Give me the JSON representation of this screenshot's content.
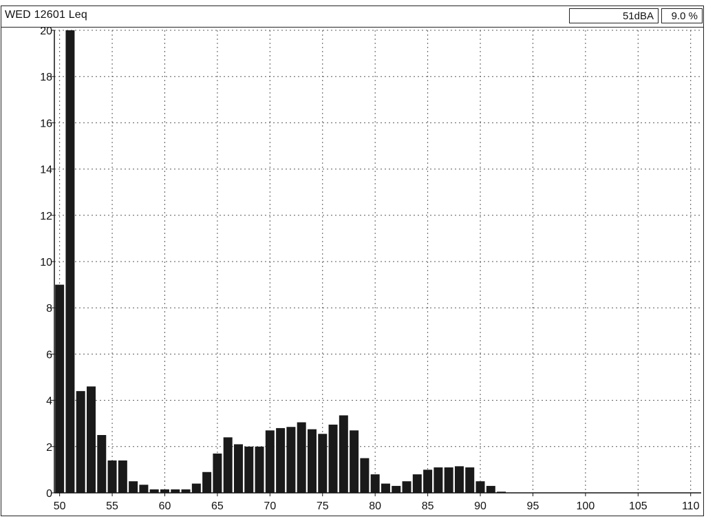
{
  "header": {
    "title": "WED 12601  Leq",
    "level_readout": "51dBA",
    "percent_readout": "9.0 %"
  },
  "colors": {
    "bar": "#1a1a1a",
    "grid": "#555555",
    "axis": "#111111"
  },
  "chart_data": {
    "type": "bar",
    "title": "",
    "xlabel": "",
    "ylabel": "",
    "xlim": [
      49.5,
      111
    ],
    "ylim": [
      0,
      20
    ],
    "x_ticks": [
      50,
      55,
      60,
      65,
      70,
      75,
      80,
      85,
      90,
      95,
      100,
      105,
      110
    ],
    "y_ticks": [
      0,
      2,
      4,
      6,
      8,
      10,
      12,
      14,
      16,
      18,
      20
    ],
    "grid": true,
    "bar_width_units": 0.85,
    "x": [
      50,
      51,
      52,
      53,
      54,
      55,
      56,
      57,
      58,
      59,
      60,
      61,
      62,
      63,
      64,
      65,
      66,
      67,
      68,
      69,
      70,
      71,
      72,
      73,
      74,
      75,
      76,
      77,
      78,
      79,
      80,
      81,
      82,
      83,
      84,
      85,
      86,
      87,
      88,
      89,
      90,
      91,
      92
    ],
    "values": [
      9.0,
      20.0,
      4.4,
      4.6,
      2.5,
      1.4,
      1.4,
      0.5,
      0.35,
      0.15,
      0.15,
      0.15,
      0.15,
      0.4,
      0.9,
      1.7,
      2.4,
      2.1,
      2.0,
      2.0,
      2.7,
      2.8,
      2.85,
      3.05,
      2.75,
      2.55,
      2.95,
      3.35,
      2.7,
      1.5,
      0.8,
      0.4,
      0.3,
      0.5,
      0.8,
      1.0,
      1.1,
      1.1,
      1.15,
      1.1,
      0.5,
      0.3,
      0.05
    ]
  }
}
